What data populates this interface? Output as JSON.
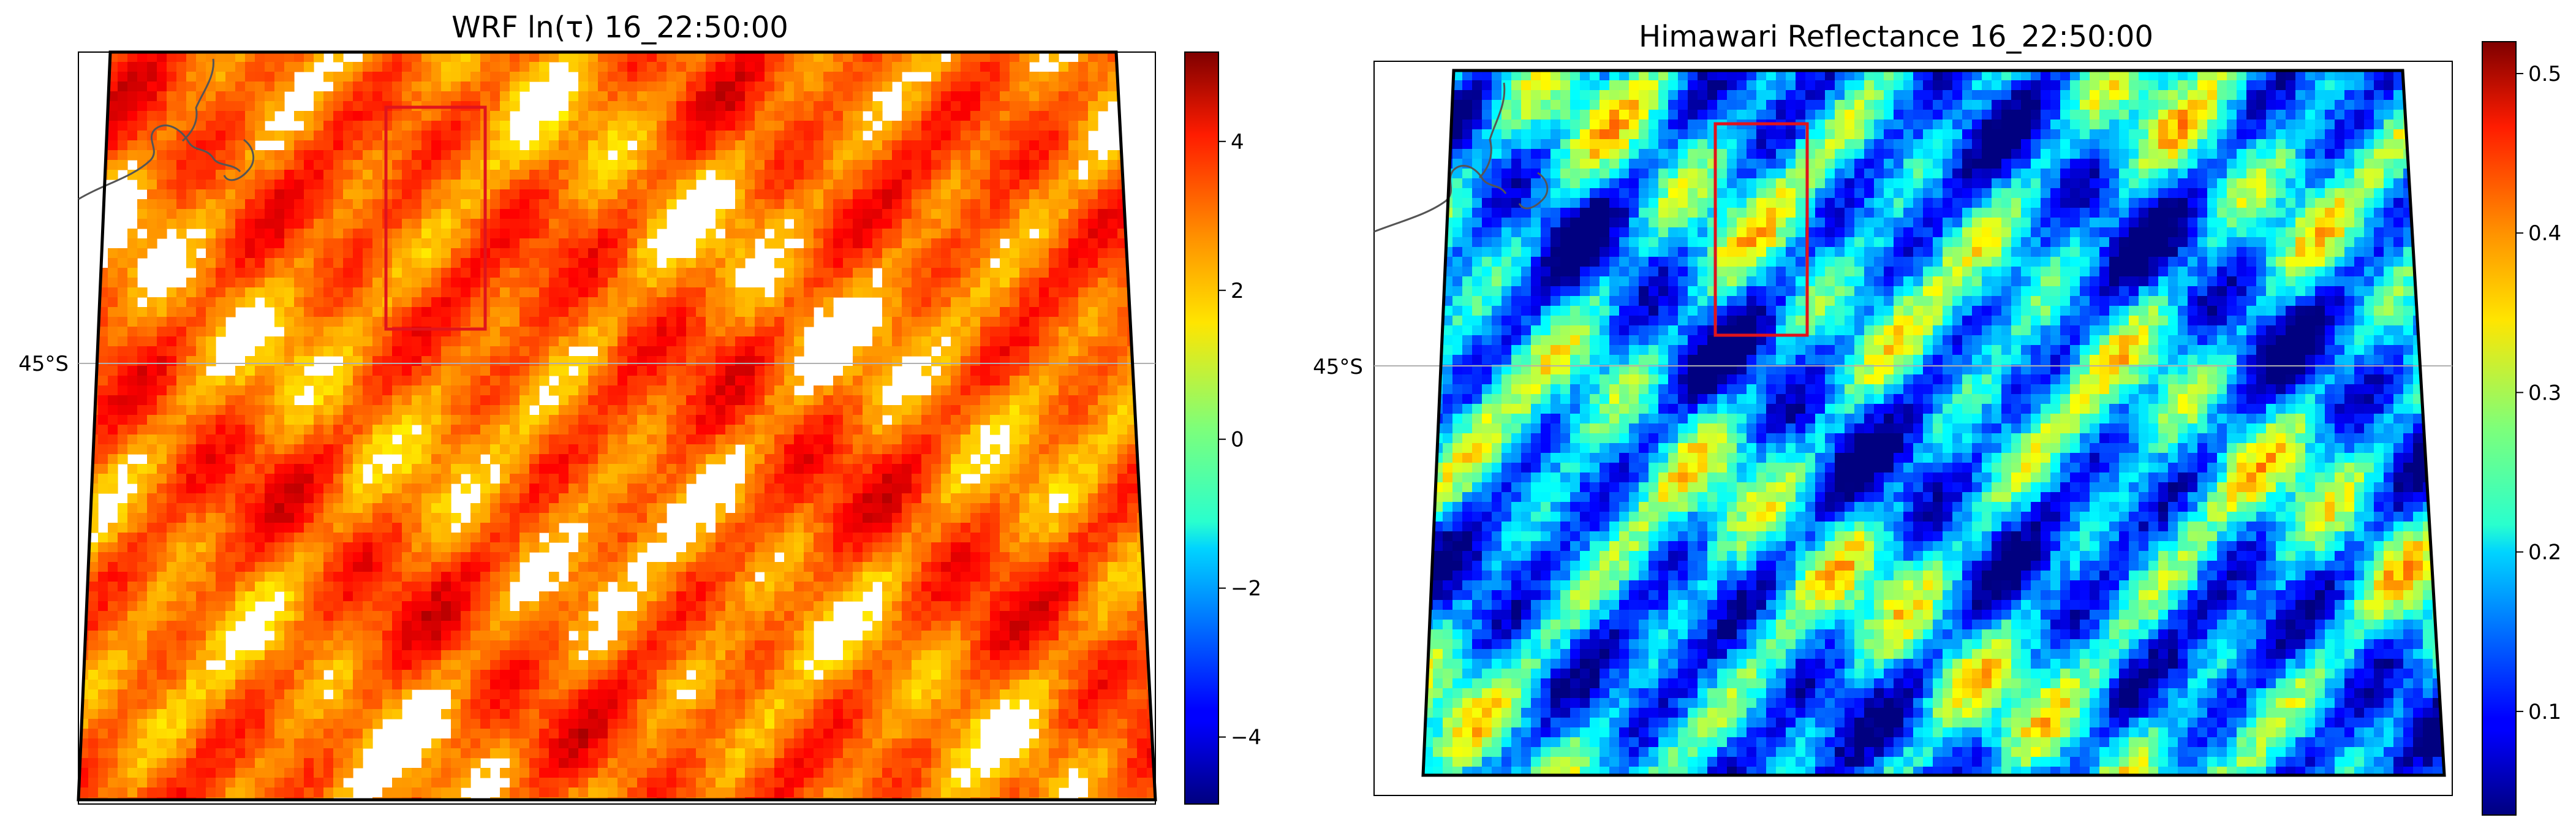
{
  "panels": [
    {
      "id": "wrf",
      "title": "WRF ln(τ) 16_22:50:00",
      "lat_label": "45°S",
      "colormap": "jet",
      "colorbar": {
        "min": -4.9,
        "max": 5.2,
        "ticks": [
          "−4",
          "−2",
          "0",
          "2",
          "4"
        ],
        "tick_values": [
          -4,
          -2,
          0,
          2,
          4
        ]
      },
      "field": {
        "fill": "dense",
        "mean_level": 0.78,
        "clear_fraction": 0.22
      }
    },
    {
      "id": "himawari",
      "title": "Himawari Reflectance 16_22:50:00",
      "lat_label": "45°S",
      "colormap": "jet",
      "colorbar": {
        "min": 0.035,
        "max": 0.52,
        "ticks": [
          "0.1",
          "0.2",
          "0.3",
          "0.4",
          "0.5"
        ],
        "tick_values": [
          0.1,
          0.2,
          0.3,
          0.4,
          0.5
        ]
      },
      "field": {
        "fill": "full",
        "mean_level": 0.35,
        "clear_fraction": 0.0
      }
    }
  ],
  "colors": {
    "box": "#e0141c",
    "domain_outline": "#000000",
    "coastline": "#555555",
    "gridline": "#b0b0b0"
  }
}
